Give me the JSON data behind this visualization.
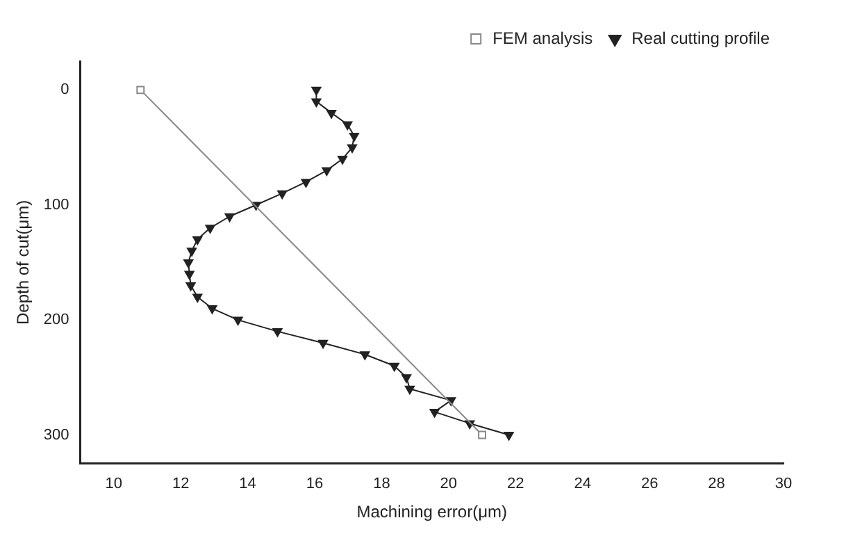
{
  "chart_data": {
    "type": "line",
    "xlabel": "Machining error(μm)",
    "ylabel": "Depth of cut(μm)",
    "xlim": [
      9,
      30
    ],
    "xticks": [
      10,
      12,
      14,
      16,
      18,
      20,
      22,
      24,
      26,
      28,
      30
    ],
    "ylim": [
      325,
      -25
    ],
    "yticks": [
      0,
      100,
      200,
      300
    ],
    "grid": false,
    "legend": "top right",
    "series": [
      {
        "name": "FEM analysis",
        "color": "#888888",
        "marker": "square",
        "x": [
          10.8,
          21.0
        ],
        "values": [
          0,
          300
        ]
      },
      {
        "name": "Real cutting profile",
        "color": "#222222",
        "marker": "triangle",
        "x": [
          16.05,
          16.05,
          16.5,
          16.98,
          17.18,
          17.12,
          16.83,
          16.36,
          15.74,
          15.03,
          14.25,
          13.46,
          12.88,
          12.5,
          12.33,
          12.23,
          12.26,
          12.3,
          12.5,
          12.94,
          13.71,
          14.89,
          16.25,
          17.5,
          18.38,
          18.74,
          18.84,
          20.07,
          19.58,
          20.63,
          21.8
        ],
        "values": [
          0,
          10,
          20,
          30,
          40,
          50,
          60,
          70,
          80,
          90,
          100,
          110,
          120,
          130,
          140,
          150,
          160,
          170,
          180,
          190,
          200,
          210,
          220,
          230,
          240,
          250,
          260,
          270,
          280,
          290,
          300
        ]
      }
    ]
  }
}
